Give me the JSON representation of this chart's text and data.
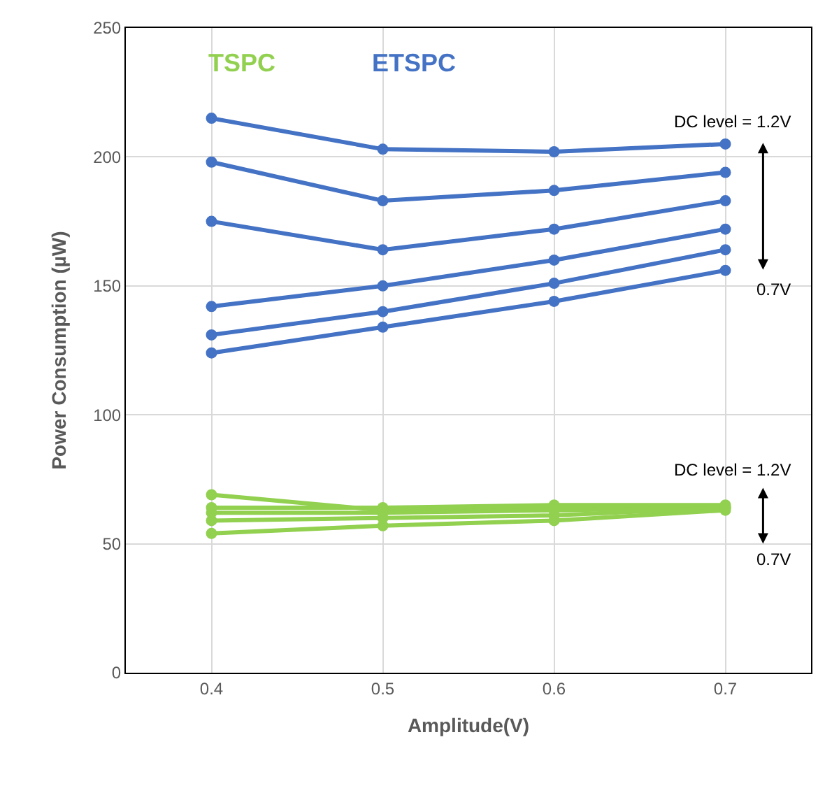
{
  "chart_data": {
    "type": "line",
    "xlabel": "Amplitude(V)",
    "ylabel": "Power Consumption (µW)",
    "categories": [
      "0.4",
      "0.5",
      "0.6",
      "0.7"
    ],
    "series": [
      {
        "color": "#4472c4",
        "values": [
          215,
          203,
          202,
          205
        ]
      },
      {
        "color": "#4472c4",
        "values": [
          198,
          183,
          187,
          194
        ]
      },
      {
        "color": "#4472c4",
        "values": [
          175,
          164,
          172,
          183
        ]
      },
      {
        "color": "#4472c4",
        "values": [
          142,
          150,
          160,
          172
        ]
      },
      {
        "color": "#4472c4",
        "values": [
          131,
          140,
          151,
          164
        ]
      },
      {
        "color": "#4472c4",
        "values": [
          124,
          134,
          144,
          156
        ]
      },
      {
        "color": "#92d050",
        "values": [
          69,
          63,
          64,
          64
        ]
      },
      {
        "color": "#92d050",
        "values": [
          64,
          64,
          65,
          65
        ]
      },
      {
        "color": "#92d050",
        "values": [
          62,
          62,
          63,
          64
        ]
      },
      {
        "color": "#92d050",
        "values": [
          59,
          60,
          61,
          64
        ]
      },
      {
        "color": "#92d050",
        "values": [
          54,
          57,
          59,
          63
        ]
      }
    ],
    "ylim": [
      0,
      250
    ],
    "yticks": [
      0,
      50,
      100,
      150,
      200,
      250
    ],
    "grid": true,
    "marker": "circle",
    "line_style": "solid",
    "annotations": [
      "TSPC",
      "ETSPC",
      "DC level = 1.2V",
      "0.7V",
      "DC level = 1.2V",
      "0.7V"
    ]
  }
}
